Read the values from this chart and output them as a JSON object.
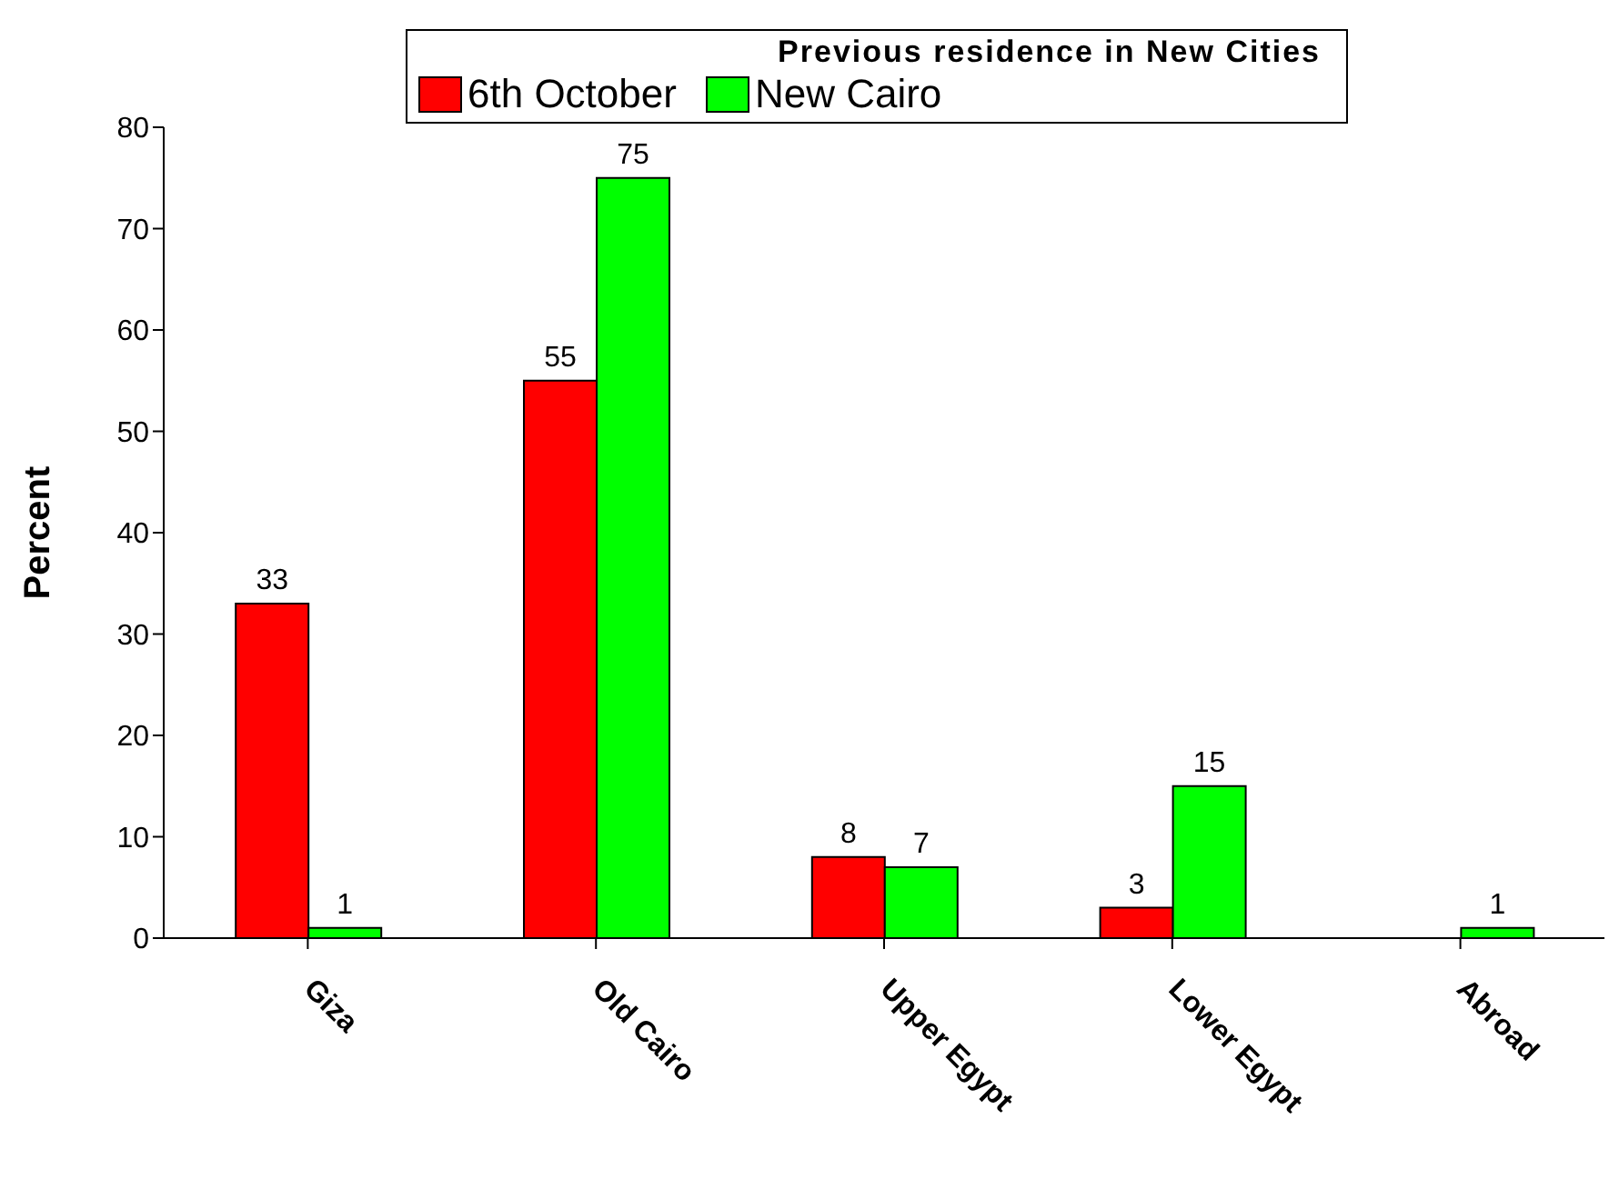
{
  "chart_data": {
    "type": "bar",
    "legend_title": "Previous residence in New Cities",
    "ylabel": "Percent",
    "categories": [
      "Giza",
      "Old Cairo",
      "Upper Egypt",
      "Lower Egypt",
      "Abroad"
    ],
    "series": [
      {
        "name": "6th October",
        "color": "#ff0000",
        "values": [
          33,
          55,
          8,
          3,
          null
        ]
      },
      {
        "name": "New Cairo",
        "color": "#00ff00",
        "values": [
          1,
          75,
          7,
          15,
          1
        ]
      }
    ],
    "ylim": [
      0,
      80
    ],
    "yticks": [
      0,
      10,
      20,
      30,
      40,
      50,
      60,
      70,
      80
    ],
    "data_labels": true,
    "legend": "top",
    "grid": false
  }
}
